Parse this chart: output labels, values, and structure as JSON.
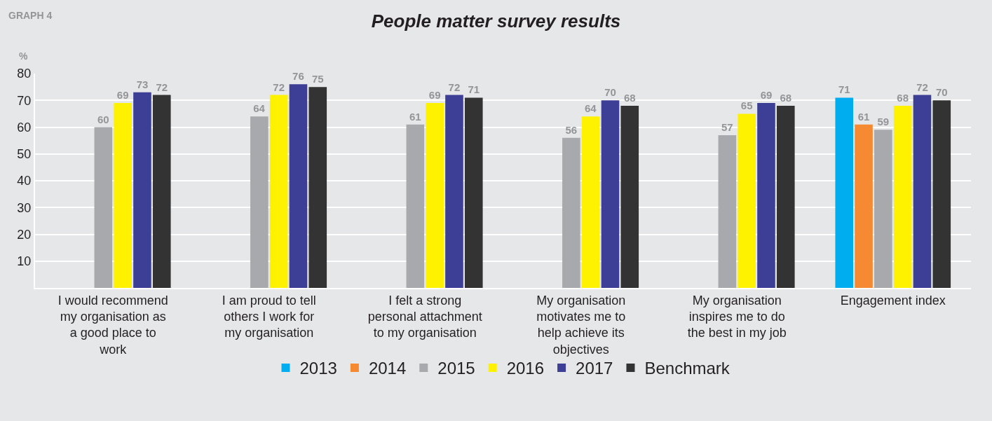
{
  "chart_data": {
    "type": "bar",
    "title": "People matter survey results",
    "ylabel": "%",
    "annotations": [
      "GRAPH 4"
    ],
    "categories": [
      "I would recommend my organisation as a good place to work",
      "I am proud to tell others I work for my organisation",
      "I felt a strong personal attachment to my organisation",
      "My organisation motivates me to help achieve its objectives",
      "My organisation inspires me to do the best in my job",
      "Engagement index"
    ],
    "series": [
      {
        "name": "2013",
        "color": "#00adef",
        "values": [
          null,
          null,
          null,
          null,
          null,
          71
        ]
      },
      {
        "name": "2014",
        "color": "#f58a33",
        "values": [
          null,
          null,
          null,
          null,
          null,
          61
        ]
      },
      {
        "name": "2015",
        "color": "#a7a9ac",
        "values": [
          60,
          64,
          61,
          56,
          57,
          59
        ]
      },
      {
        "name": "2016",
        "color": "#fff200",
        "values": [
          69,
          72,
          69,
          64,
          65,
          68
        ]
      },
      {
        "name": "2017",
        "color": "#3c3f95",
        "values": [
          73,
          76,
          72,
          70,
          69,
          72
        ]
      },
      {
        "name": "Benchmark",
        "color": "#333333",
        "values": [
          72,
          75,
          71,
          68,
          68,
          70
        ]
      }
    ],
    "ylim": [
      0,
      80
    ],
    "yticks": [
      10,
      20,
      30,
      40,
      50,
      60,
      70,
      80
    ],
    "grid": "y",
    "legend": "bottom",
    "data_labels": true
  }
}
